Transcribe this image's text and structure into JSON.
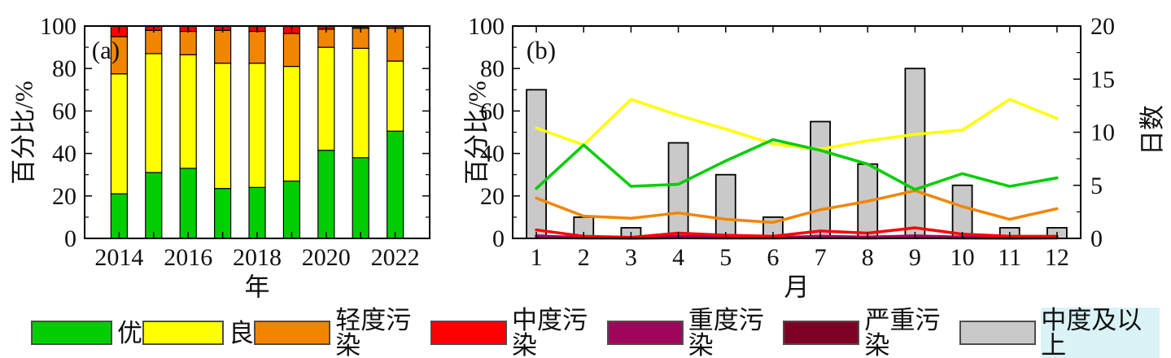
{
  "figure": {
    "panel_a_tag": "(a)",
    "panel_b_tag": "(b)",
    "axis_labels": {
      "percent": "百分比/%",
      "days": "日数",
      "year": "年",
      "month": "月"
    }
  },
  "legend": {
    "items": [
      {
        "label": "优",
        "color": "#00CE00"
      },
      {
        "label": "良",
        "color": "#FFFF00"
      },
      {
        "label": "轻度污染",
        "color": "#F28500"
      },
      {
        "label": "中度污染",
        "color": "#FF0000"
      },
      {
        "label": "重度污染",
        "color": "#A0055C"
      },
      {
        "label": "严重污染",
        "color": "#7D0025"
      },
      {
        "label": "中度及以上",
        "color": "#C9C9C9",
        "highlight": true
      }
    ]
  },
  "chart_data": [
    {
      "id": "panel-a",
      "type": "bar",
      "stacked": true,
      "title": "",
      "xlabel": "年",
      "ylabel": "百分比/%",
      "ylim": [
        0,
        100
      ],
      "yticks": [
        0,
        20,
        40,
        60,
        80,
        100
      ],
      "ytick_minor_step": 10,
      "categories": [
        "2014",
        "2015",
        "2016",
        "2017",
        "2018",
        "2019",
        "2020",
        "2021",
        "2022"
      ],
      "xtick_labeled": [
        "2014",
        "2016",
        "2018",
        "2020",
        "2022"
      ],
      "series": [
        {
          "name": "优",
          "color": "#00CE00",
          "values": [
            21,
            31,
            33,
            23.5,
            24,
            27,
            41.5,
            38,
            50.5
          ]
        },
        {
          "name": "良",
          "color": "#FFFF00",
          "values": [
            56.5,
            56,
            53.5,
            59,
            58.5,
            54,
            48.5,
            51.5,
            33
          ]
        },
        {
          "name": "轻度污染",
          "color": "#F28500",
          "values": [
            17.5,
            11,
            11,
            15.5,
            15,
            15.5,
            8.5,
            9.5,
            15.5
          ]
        },
        {
          "name": "中度污染",
          "color": "#FF0000",
          "values": [
            5,
            2,
            2.5,
            2,
            2.5,
            3.5,
            1.5,
            0,
            1
          ]
        },
        {
          "name": "重度污染",
          "color": "#A0055C",
          "values": [
            0,
            0,
            0,
            0,
            0,
            0,
            0,
            0,
            0
          ]
        },
        {
          "name": "严重污染",
          "color": "#7D0025",
          "values": [
            0,
            0,
            0,
            0,
            0,
            0,
            0,
            1,
            0
          ]
        }
      ]
    },
    {
      "id": "panel-b",
      "type": "line+bar",
      "title": "",
      "xlabel": "月",
      "ylabel_left": "百分比/%",
      "ylabel_right": "日数",
      "ylim_left": [
        0,
        100
      ],
      "ylim_right": [
        0,
        20
      ],
      "yticks_left": [
        0,
        20,
        40,
        60,
        80,
        100
      ],
      "ytick_minor_step_left": 10,
      "yticks_right": [
        0,
        5,
        10,
        15,
        20
      ],
      "ytick_minor_step_right": 2.5,
      "categories": [
        "1",
        "2",
        "3",
        "4",
        "5",
        "6",
        "7",
        "8",
        "9",
        "10",
        "11",
        "12"
      ],
      "bars": {
        "name": "中度及以上",
        "axis": "right",
        "color": "#C9C9C9",
        "values": [
          14,
          2,
          1,
          9,
          6,
          2,
          11,
          7,
          16,
          5,
          1,
          1
        ]
      },
      "lines": [
        {
          "name": "优",
          "color": "#00CE00",
          "values": [
            23.5,
            44,
            24.5,
            25.5,
            36.5,
            46.5,
            41.5,
            35,
            23,
            30.5,
            24.5,
            28.5
          ]
        },
        {
          "name": "良",
          "color": "#FFFF00",
          "values": [
            52,
            44,
            65.5,
            58,
            51.5,
            44.5,
            42,
            46,
            49,
            51,
            65.5,
            56.5
          ]
        },
        {
          "name": "轻度污染",
          "color": "#F28500",
          "values": [
            19,
            10.5,
            9.5,
            12,
            9,
            7.5,
            13.5,
            17.5,
            22.5,
            15,
            9,
            14
          ]
        },
        {
          "name": "中度污染",
          "color": "#FF0000",
          "values": [
            4,
            1,
            0.5,
            2.5,
            1.5,
            1,
            3.5,
            2.5,
            5,
            2,
            1,
            1
          ]
        },
        {
          "name": "重度污染",
          "color": "#A0055C",
          "values": [
            1.2,
            0.4,
            0.3,
            1,
            0.6,
            0.4,
            1,
            0.6,
            1.2,
            0.6,
            0.3,
            0.4
          ]
        },
        {
          "name": "严重污染",
          "color": "#7D0025",
          "values": [
            0.4,
            0.2,
            0.1,
            0.3,
            0.2,
            0.2,
            0.4,
            0.2,
            0.4,
            0.2,
            0.1,
            0.2
          ]
        }
      ],
      "line_draw_order": [
        5,
        4,
        2,
        1,
        0,
        3
      ]
    }
  ]
}
